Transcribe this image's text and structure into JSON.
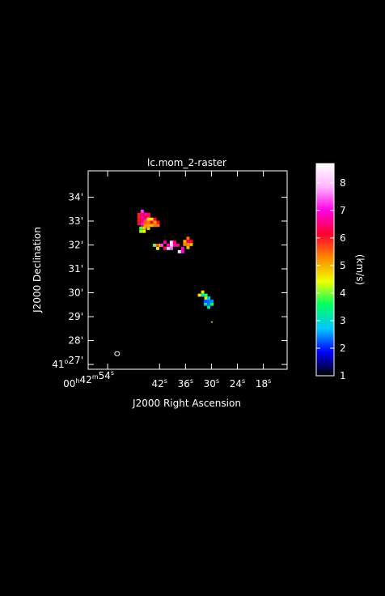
{
  "chart_data": {
    "type": "heatmap",
    "title": "lc.mom_2-raster",
    "xlabel": "J2000 Right Ascension",
    "ylabel": "J2000 Declination",
    "colorbar_label": "(km/s)",
    "x_ticks": [
      {
        "h": "00",
        "m": "42",
        "s": "54",
        "sec": 54
      },
      {
        "s": "42",
        "sec": 42
      },
      {
        "s": "36",
        "sec": 36
      },
      {
        "s": "30",
        "sec": 30
      },
      {
        "s": "24",
        "sec": 24
      },
      {
        "s": "18",
        "sec": 18
      }
    ],
    "xlim_sec": [
      58.5,
      12.5
    ],
    "y_ticks": [
      {
        "deg": "41",
        "min": "27",
        "value": 27
      },
      {
        "min": "28",
        "value": 28
      },
      {
        "min": "29",
        "value": 29
      },
      {
        "min": "30",
        "value": 30
      },
      {
        "min": "31",
        "value": 31
      },
      {
        "min": "32",
        "value": 32
      },
      {
        "min": "33",
        "value": 33
      },
      {
        "min": "34",
        "value": 34
      }
    ],
    "ylim_arcmin": [
      26.8,
      35.1
    ],
    "colorbar": {
      "range": [
        1.0,
        8.7
      ],
      "ticks": [
        1,
        2,
        3,
        4,
        5,
        6,
        7,
        8
      ],
      "colormap": [
        "#000000",
        "#0000ff",
        "#00c8ff",
        "#00ff60",
        "#f0ff00",
        "#ff8a00",
        "#ff0030",
        "#ff00e0",
        "#ffb4ff",
        "#ffffff"
      ]
    },
    "grid": false,
    "beam": {
      "ra_sec": 51.8,
      "dec_arcmin": 27.45
    },
    "pixel_size": {
      "ra_sec": 0.75,
      "dec_arcmin": 0.13
    },
    "clumps": [
      {
        "ra_sec": 46.0,
        "dec_arcmin": 33.15,
        "value": 6.4,
        "spread_ra": 1.9,
        "spread_dec": 0.35
      },
      {
        "ra_sec": 44.2,
        "dec_arcmin": 32.95,
        "value": 5.3,
        "spread_ra": 1.6,
        "spread_dec": 0.3
      },
      {
        "ra_sec": 46.3,
        "dec_arcmin": 32.7,
        "value": 4.4,
        "spread_ra": 1.1,
        "spread_dec": 0.2
      },
      {
        "ra_sec": 42.8,
        "dec_arcmin": 32.05,
        "value": 4.8,
        "spread_ra": 0.8,
        "spread_dec": 0.25
      },
      {
        "ra_sec": 40.0,
        "dec_arcmin": 32.05,
        "value": 7.3,
        "spread_ra": 2.0,
        "spread_dec": 0.25
      },
      {
        "ra_sec": 37.4,
        "dec_arcmin": 31.85,
        "value": 7.5,
        "spread_ra": 1.1,
        "spread_dec": 0.2
      },
      {
        "ra_sec": 35.8,
        "dec_arcmin": 32.15,
        "value": 6.0,
        "spread_ra": 0.8,
        "spread_dec": 0.2
      },
      {
        "ra_sec": 32.4,
        "dec_arcmin": 29.9,
        "value": 3.8,
        "spread_ra": 0.9,
        "spread_dec": 0.3
      },
      {
        "ra_sec": 31.0,
        "dec_arcmin": 29.65,
        "value": 2.6,
        "spread_ra": 0.8,
        "spread_dec": 0.3
      }
    ],
    "isolated_pixels": [
      {
        "ra_sec": 30.1,
        "dec_arcmin": 28.8,
        "value": 4.6
      }
    ]
  }
}
